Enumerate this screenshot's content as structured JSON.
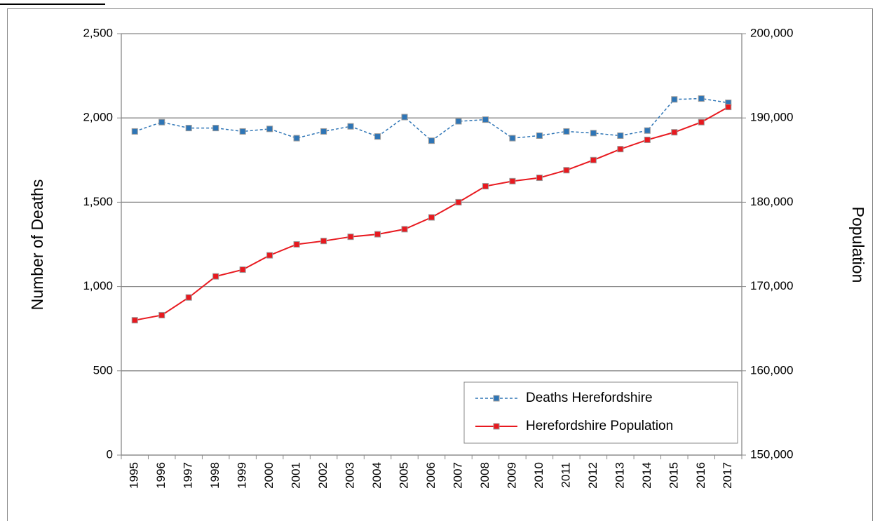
{
  "chart_data": {
    "type": "line",
    "y_label": "Number of Deaths",
    "y2_label": "Population",
    "categories": [
      "1995",
      "1996",
      "1997",
      "1998",
      "1999",
      "2000",
      "2001",
      "2002",
      "2003",
      "2004",
      "2005",
      "2006",
      "2007",
      "2008",
      "2009",
      "2010",
      "2011",
      "2012",
      "2013",
      "2014",
      "2015",
      "2016",
      "2017"
    ],
    "series": [
      {
        "name": "Deaths Herefordshire",
        "color": "#2e75b6",
        "dashed": true,
        "values": [
          1920,
          1975,
          1940,
          1940,
          1920,
          1935,
          1880,
          1920,
          1950,
          1890,
          2005,
          1865,
          1980,
          1990,
          1880,
          1895,
          1920,
          1910,
          1895,
          1925,
          2110,
          2115,
          2090
        ]
      },
      {
        "name": "Herefordshire Population",
        "color": "#e8191f",
        "axis": "y2",
        "values": [
          166000,
          166600,
          168700,
          171200,
          172000,
          173700,
          175000,
          175400,
          175900,
          176200,
          176800,
          178200,
          180000,
          181900,
          182500,
          182900,
          183800,
          185000,
          186300,
          187400,
          188300,
          189500,
          191300
        ]
      }
    ],
    "ylim": [
      0,
      2500
    ],
    "yticks": [
      0,
      {
        "value": 500,
        "label": "500"
      },
      {
        "value": 1000,
        "label": "1,000"
      },
      {
        "value": 1500,
        "label": "1,500"
      },
      {
        "value": 2000,
        "label": "2,000"
      },
      {
        "value": 2500,
        "label": "2,500"
      }
    ],
    "y2lim": [
      150000,
      200000
    ],
    "y2ticks": [
      {
        "value": 150000,
        "label": "150,000"
      },
      {
        "value": 160000,
        "label": "160,000"
      },
      {
        "value": 170000,
        "label": "170,000"
      },
      {
        "value": 180000,
        "label": "180,000"
      },
      {
        "value": 190000,
        "label": "190,000"
      },
      {
        "value": 200000,
        "label": "200,000"
      }
    ],
    "grid": true,
    "legend": "bottom-right"
  }
}
